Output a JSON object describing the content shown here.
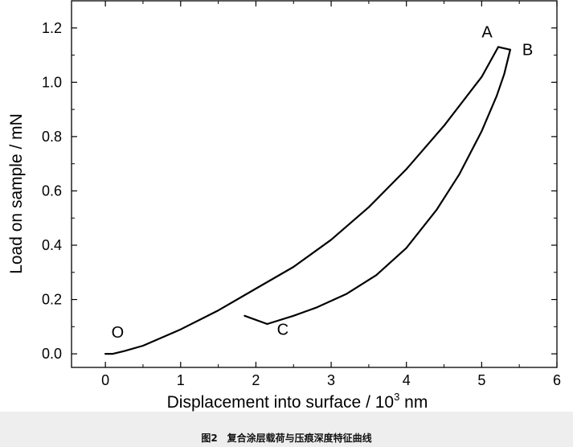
{
  "caption": "图2　复合涂层载荷与压痕深度特征曲线",
  "chart_data": {
    "type": "line",
    "xlabel_main": "Displacement into surface / 10",
    "xlabel_sup": "3",
    "xlabel_unit": " nm",
    "ylabel": "Load on sample / mN",
    "xlim": [
      -0.45,
      6.0
    ],
    "ylim": [
      -0.05,
      1.3
    ],
    "xticks": [
      0,
      1,
      2,
      3,
      4,
      5,
      6
    ],
    "yticks": [
      0.0,
      0.2,
      0.4,
      0.6,
      0.8,
      1.0,
      1.2
    ],
    "ytick_labels": [
      "0.0",
      "0.2",
      "0.4",
      "0.6",
      "0.8",
      "1.0",
      "1.2"
    ],
    "grid": false,
    "line_color": "#000000",
    "series": [
      {
        "points": [
          [
            0.0,
            0.0
          ],
          [
            0.1,
            0.0
          ],
          [
            0.25,
            0.01
          ],
          [
            0.5,
            0.03
          ],
          [
            1.0,
            0.09
          ],
          [
            1.5,
            0.16
          ],
          [
            2.0,
            0.24
          ],
          [
            2.5,
            0.32
          ],
          [
            3.0,
            0.42
          ],
          [
            3.5,
            0.54
          ],
          [
            4.0,
            0.68
          ],
          [
            4.5,
            0.84
          ],
          [
            5.0,
            1.02
          ],
          [
            5.22,
            1.13
          ]
        ]
      },
      {
        "points": [
          [
            5.22,
            1.13
          ],
          [
            5.38,
            1.12
          ]
        ]
      },
      {
        "points": [
          [
            5.38,
            1.12
          ],
          [
            5.3,
            1.03
          ],
          [
            5.2,
            0.95
          ],
          [
            5.0,
            0.82
          ],
          [
            4.7,
            0.66
          ],
          [
            4.4,
            0.53
          ],
          [
            4.0,
            0.39
          ],
          [
            3.6,
            0.29
          ],
          [
            3.2,
            0.22
          ],
          [
            2.8,
            0.17
          ],
          [
            2.5,
            0.14
          ],
          [
            2.15,
            0.11
          ]
        ]
      },
      {
        "points": [
          [
            2.15,
            0.11
          ],
          [
            1.85,
            0.14
          ]
        ]
      }
    ],
    "annotations": [
      {
        "text": "A",
        "x": 5.0,
        "y": 1.165
      },
      {
        "text": "B",
        "x": 5.54,
        "y": 1.1
      },
      {
        "text": "C",
        "x": 2.28,
        "y": 0.07
      },
      {
        "text": "O",
        "x": 0.08,
        "y": 0.06
      }
    ]
  }
}
